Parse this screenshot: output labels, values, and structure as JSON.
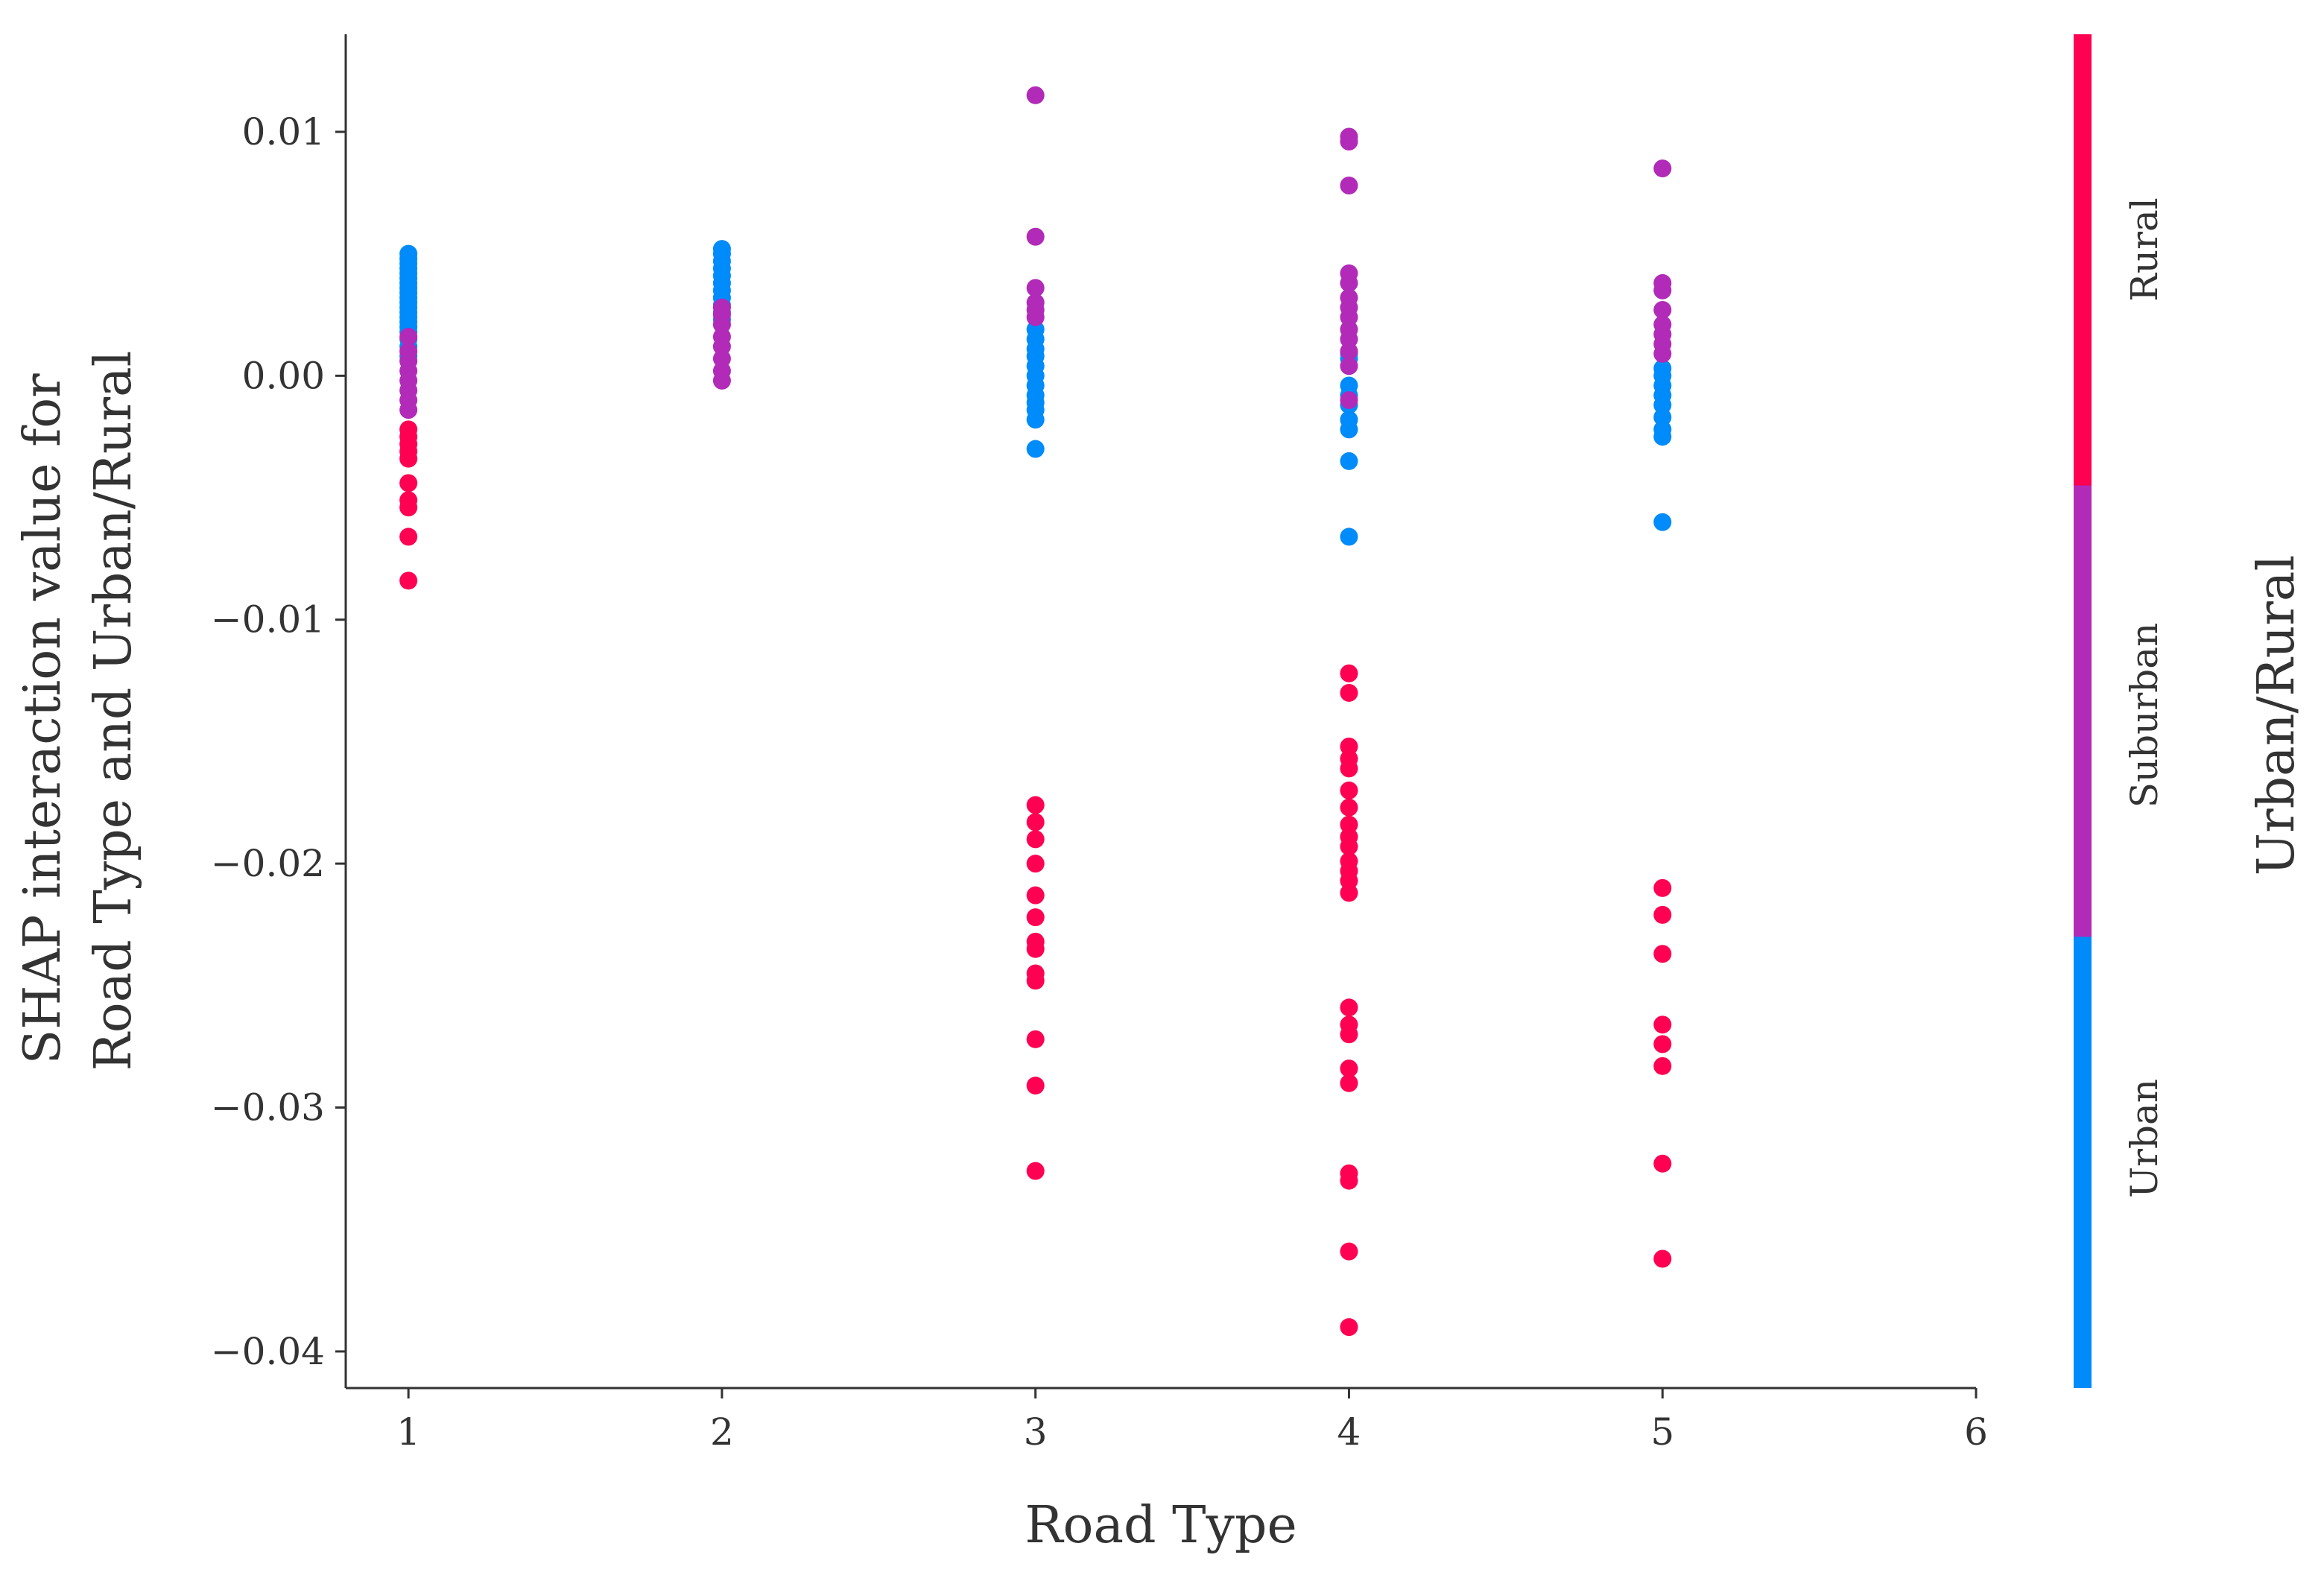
{
  "chart_data": {
    "type": "scatter",
    "xlabel": "Road Type",
    "ylabel": [
      "SHAP interaction value for",
      "Road Type and Urban/Rural"
    ],
    "xlim": [
      0.8,
      6.0
    ],
    "ylim": [
      -0.0415,
      0.014
    ],
    "xticks": [
      "1",
      "2",
      "3",
      "4",
      "5",
      "6"
    ],
    "yticks": [
      {
        "value": 0.01,
        "label": "0.01"
      },
      {
        "value": 0.0,
        "label": "0.00"
      },
      {
        "value": -0.01,
        "label": "−0.01"
      },
      {
        "value": -0.02,
        "label": "−0.02"
      },
      {
        "value": -0.03,
        "label": "−0.03"
      },
      {
        "value": -0.04,
        "label": "−0.04"
      }
    ],
    "colorbar": {
      "title": "Urban/Rural",
      "labels": [
        "Rural",
        "Suburban",
        "Urban"
      ],
      "colors": {
        "Rural": "#ff0052",
        "Suburban": "#b22ab8",
        "Urban": "#008bfb"
      }
    },
    "series": [
      {
        "name": "Urban",
        "color": "#008bfb",
        "points": [
          [
            1,
            0.005
          ],
          [
            1,
            0.0048
          ],
          [
            1,
            0.0046
          ],
          [
            1,
            0.0044
          ],
          [
            1,
            0.0042
          ],
          [
            1,
            0.004
          ],
          [
            1,
            0.0038
          ],
          [
            1,
            0.0036
          ],
          [
            1,
            0.0034
          ],
          [
            1,
            0.0032
          ],
          [
            1,
            0.003
          ],
          [
            1,
            0.0028
          ],
          [
            1,
            0.0026
          ],
          [
            1,
            0.0024
          ],
          [
            1,
            0.0022
          ],
          [
            1,
            0.002
          ],
          [
            1,
            0.0018
          ],
          [
            1,
            0.0015
          ],
          [
            1,
            0.0012
          ],
          [
            1,
            0.0008
          ],
          [
            2,
            0.0052
          ],
          [
            2,
            0.005
          ],
          [
            2,
            0.0047
          ],
          [
            2,
            0.0044
          ],
          [
            2,
            0.0041
          ],
          [
            2,
            0.0038
          ],
          [
            2,
            0.0035
          ],
          [
            2,
            0.0032
          ],
          [
            2,
            0.0029
          ],
          [
            2,
            0.0026
          ],
          [
            2,
            0.0023
          ],
          [
            3,
            0.0019
          ],
          [
            3,
            0.0015
          ],
          [
            3,
            0.0011
          ],
          [
            3,
            0.0008
          ],
          [
            3,
            0.0004
          ],
          [
            3,
            0.0
          ],
          [
            3,
            -0.0004
          ],
          [
            3,
            -0.0008
          ],
          [
            3,
            -0.0011
          ],
          [
            3,
            -0.0014
          ],
          [
            3,
            -0.0018
          ],
          [
            3,
            -0.003
          ],
          [
            4,
            0.0009
          ],
          [
            4,
            0.0007
          ],
          [
            4,
            -0.0004
          ],
          [
            4,
            -0.0008
          ],
          [
            4,
            -0.0012
          ],
          [
            4,
            -0.0018
          ],
          [
            4,
            -0.0022
          ],
          [
            4,
            -0.0035
          ],
          [
            4,
            -0.0066
          ],
          [
            5,
            0.0003
          ],
          [
            5,
            0.0
          ],
          [
            5,
            -0.0004
          ],
          [
            5,
            -0.0008
          ],
          [
            5,
            -0.0012
          ],
          [
            5,
            -0.0017
          ],
          [
            5,
            -0.0022
          ],
          [
            5,
            -0.0025
          ],
          [
            5,
            -0.006
          ]
        ]
      },
      {
        "name": "Suburban",
        "color": "#b22ab8",
        "points": [
          [
            1,
            0.0016
          ],
          [
            1,
            0.001
          ],
          [
            1,
            0.0006
          ],
          [
            1,
            0.0002
          ],
          [
            1,
            -0.0002
          ],
          [
            1,
            -0.0006
          ],
          [
            1,
            -0.001
          ],
          [
            1,
            -0.0014
          ],
          [
            2,
            0.0028
          ],
          [
            2,
            0.0025
          ],
          [
            2,
            0.0021
          ],
          [
            2,
            0.0016
          ],
          [
            2,
            0.0012
          ],
          [
            2,
            0.0007
          ],
          [
            2,
            0.0002
          ],
          [
            2,
            -0.0002
          ],
          [
            3,
            0.0115
          ],
          [
            3,
            0.0057
          ],
          [
            3,
            0.0036
          ],
          [
            3,
            0.003
          ],
          [
            3,
            0.0027
          ],
          [
            3,
            0.0024
          ],
          [
            4,
            0.0098
          ],
          [
            4,
            0.0096
          ],
          [
            4,
            0.0078
          ],
          [
            4,
            0.0042
          ],
          [
            4,
            0.0038
          ],
          [
            4,
            0.0032
          ],
          [
            4,
            0.0028
          ],
          [
            4,
            0.0024
          ],
          [
            4,
            0.0019
          ],
          [
            4,
            0.0015
          ],
          [
            4,
            0.001
          ],
          [
            4,
            0.0004
          ],
          [
            4,
            -0.001
          ],
          [
            5,
            0.0085
          ],
          [
            5,
            0.0038
          ],
          [
            5,
            0.0035
          ],
          [
            5,
            0.0027
          ],
          [
            5,
            0.0021
          ],
          [
            5,
            0.0017
          ],
          [
            5,
            0.0013
          ],
          [
            5,
            0.0009
          ]
        ]
      },
      {
        "name": "Rural",
        "color": "#ff0052",
        "points": [
          [
            1,
            -0.0022
          ],
          [
            1,
            -0.0025
          ],
          [
            1,
            -0.0028
          ],
          [
            1,
            -0.0031
          ],
          [
            1,
            -0.0034
          ],
          [
            1,
            -0.0044
          ],
          [
            1,
            -0.0051
          ],
          [
            1,
            -0.0054
          ],
          [
            1,
            -0.0066
          ],
          [
            1,
            -0.0084
          ],
          [
            3,
            -0.0176
          ],
          [
            3,
            -0.0183
          ],
          [
            3,
            -0.019
          ],
          [
            3,
            -0.02
          ],
          [
            3,
            -0.0213
          ],
          [
            3,
            -0.0222
          ],
          [
            3,
            -0.0232
          ],
          [
            3,
            -0.0235
          ],
          [
            3,
            -0.0245
          ],
          [
            3,
            -0.0248
          ],
          [
            3,
            -0.0272
          ],
          [
            3,
            -0.0291
          ],
          [
            3,
            -0.0326
          ],
          [
            4,
            -0.0122
          ],
          [
            4,
            -0.013
          ],
          [
            4,
            -0.0152
          ],
          [
            4,
            -0.0157
          ],
          [
            4,
            -0.0161
          ],
          [
            4,
            -0.017
          ],
          [
            4,
            -0.0177
          ],
          [
            4,
            -0.0184
          ],
          [
            4,
            -0.0189
          ],
          [
            4,
            -0.0193
          ],
          [
            4,
            -0.0199
          ],
          [
            4,
            -0.0203
          ],
          [
            4,
            -0.0207
          ],
          [
            4,
            -0.0212
          ],
          [
            4,
            -0.0259
          ],
          [
            4,
            -0.0266
          ],
          [
            4,
            -0.027
          ],
          [
            4,
            -0.0284
          ],
          [
            4,
            -0.029
          ],
          [
            4,
            -0.0327
          ],
          [
            4,
            -0.033
          ],
          [
            4,
            -0.0359
          ],
          [
            4,
            -0.039
          ],
          [
            5,
            -0.021
          ],
          [
            5,
            -0.0221
          ],
          [
            5,
            -0.0237
          ],
          [
            5,
            -0.0266
          ],
          [
            5,
            -0.0274
          ],
          [
            5,
            -0.0283
          ],
          [
            5,
            -0.0323
          ],
          [
            5,
            -0.0362
          ]
        ]
      }
    ]
  }
}
